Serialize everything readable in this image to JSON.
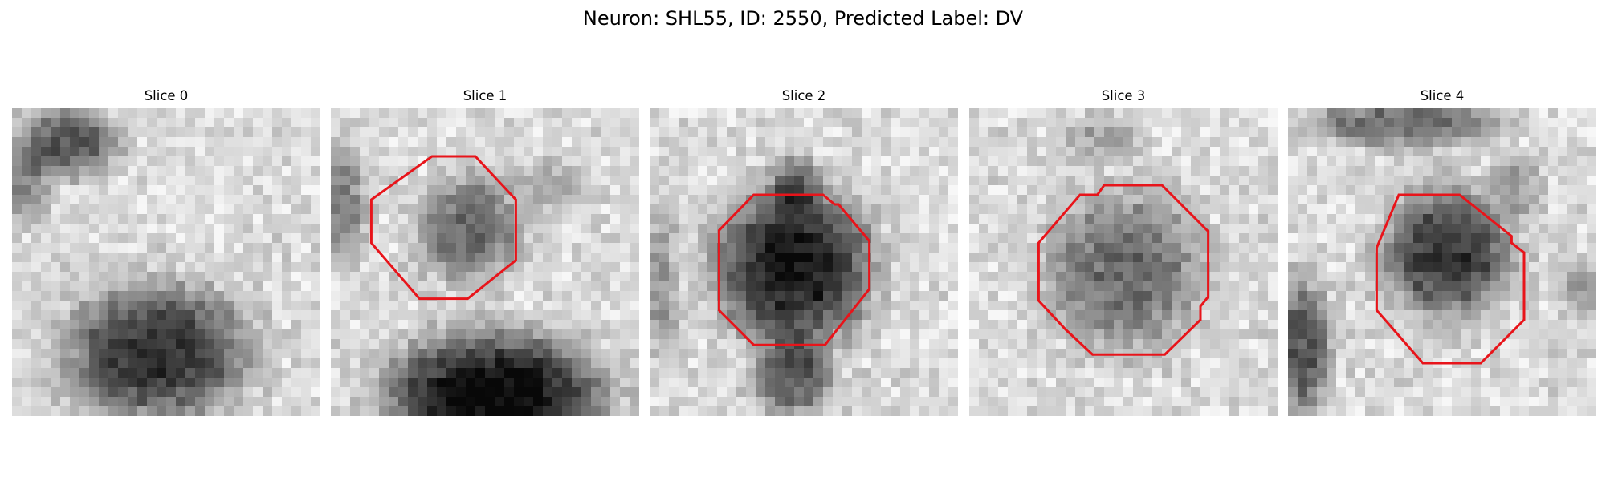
{
  "figure": {
    "title": "Neuron: SHL55, ID: 2550, Predicted Label: DV"
  },
  "colors": {
    "contour": "#e8141a"
  },
  "panels": [
    {
      "title": "Slice 0",
      "has_contour": false
    },
    {
      "title": "Slice 1",
      "has_contour": true
    },
    {
      "title": "Slice 2",
      "has_contour": true
    },
    {
      "title": "Slice 3",
      "has_contour": true
    },
    {
      "title": "Slice 4",
      "has_contour": true
    }
  ]
}
